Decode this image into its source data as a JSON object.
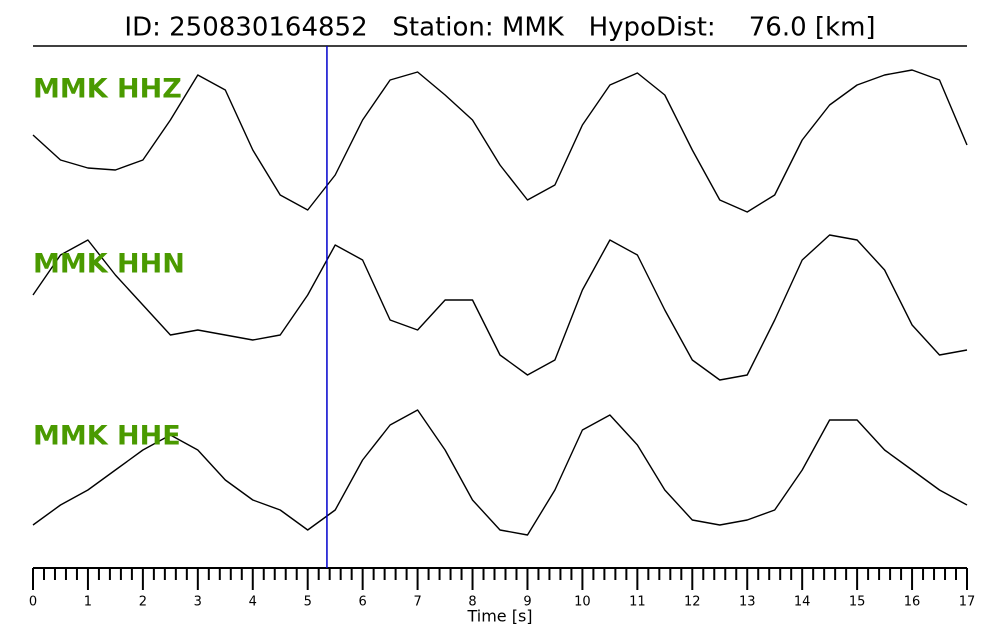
{
  "chart_data": {
    "type": "seismogram",
    "title": "ID: 250830164852   Station: MMK   HypoDist:    76.0 [km]",
    "x_label": "Time [s]",
    "xlim": [
      0,
      17
    ],
    "xticks": [
      0,
      1,
      2,
      3,
      4,
      5,
      6,
      7,
      8,
      9,
      10,
      11,
      12,
      13,
      14,
      15,
      16,
      17
    ],
    "xminorticks": [
      0.2,
      0.4,
      0.6,
      0.8,
      1.2,
      1.4,
      1.6,
      1.8,
      2.2,
      2.4,
      2.6,
      2.8,
      3.2,
      3.4,
      3.6,
      3.8,
      4.2,
      4.4,
      4.6,
      4.8,
      5.2,
      5.4,
      5.6,
      5.8,
      6.2,
      6.4,
      6.6,
      6.8,
      7.2,
      7.4,
      7.6,
      7.8,
      8.2,
      8.4,
      8.6,
      8.8,
      9.2,
      9.4,
      9.6,
      9.8,
      10.2,
      10.4,
      10.6,
      10.8,
      11.2,
      11.4,
      11.6,
      11.8,
      12.2,
      12.4,
      12.6,
      12.8,
      13.2,
      13.4,
      13.6,
      13.8,
      14.2,
      14.4,
      14.6,
      14.8,
      15.2,
      15.4,
      15.6,
      15.8,
      16.2,
      16.4,
      16.6,
      16.8
    ],
    "ylim": [
      -80,
      80
    ],
    "pick": {
      "x": 5.35,
      "color": "#0000cc"
    },
    "label_color": "#4a9a00",
    "x": [
      0,
      0.5,
      1,
      1.5,
      2,
      2.5,
      3,
      3.5,
      4,
      4.5,
      5,
      5.5,
      6,
      6.5,
      7,
      7.5,
      8,
      8.5,
      9,
      9.5,
      10,
      10.5,
      11,
      11.5,
      12,
      12.5,
      13,
      13.5,
      14,
      14.5,
      15,
      15.5,
      16,
      16.5,
      17
    ],
    "series": [
      {
        "name": "MMK HHZ",
        "color": "#000000",
        "values": [
          5,
          -20,
          -28,
          -30,
          -20,
          20,
          65,
          50,
          -10,
          -55,
          -70,
          -35,
          20,
          60,
          68,
          45,
          20,
          -25,
          -60,
          -45,
          15,
          55,
          67,
          45,
          -10,
          -60,
          -72,
          -55,
          0,
          35,
          55,
          65,
          70,
          60,
          -5
        ]
      },
      {
        "name": "MMK HHN",
        "color": "#000000",
        "values": [
          10,
          50,
          65,
          30,
          0,
          -30,
          -25,
          -30,
          -35,
          -30,
          10,
          60,
          45,
          -15,
          -25,
          5,
          5,
          -50,
          -70,
          -55,
          15,
          65,
          50,
          -5,
          -55,
          -75,
          -70,
          -15,
          45,
          70,
          65,
          35,
          -20,
          -50,
          -45
        ]
      },
      {
        "name": "MMK HHE",
        "color": "#000000",
        "values": [
          -55,
          -35,
          -20,
          0,
          20,
          35,
          20,
          -10,
          -30,
          -40,
          -60,
          -40,
          10,
          45,
          60,
          20,
          -30,
          -60,
          -65,
          -20,
          40,
          55,
          25,
          -20,
          -50,
          -55,
          -50,
          -40,
          0,
          50,
          50,
          20,
          0,
          -20,
          -35
        ]
      }
    ]
  }
}
